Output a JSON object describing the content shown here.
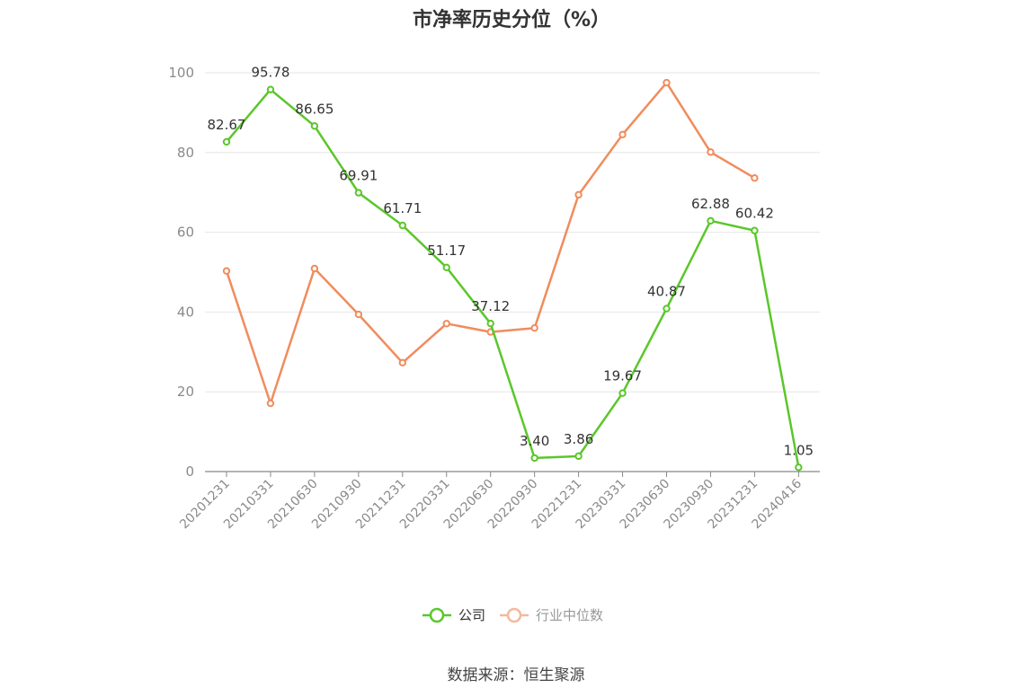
{
  "title": "市净率历史分位（%）",
  "source": "数据来源：恒生聚源",
  "colors": {
    "company": "#5ac72a",
    "industry": "#f08c5c",
    "industry_legend": "#f4b89c",
    "grid": "#e6e6e6",
    "axis": "#888888"
  },
  "chart_data": {
    "type": "line",
    "title": "市净率历史分位（%）",
    "categories": [
      "20201231",
      "20210331",
      "20210630",
      "20210930",
      "20211231",
      "20220331",
      "20220630",
      "20220930",
      "20221231",
      "20230331",
      "20230630",
      "20230930",
      "20231231",
      "20240416"
    ],
    "ylim": [
      0,
      100
    ],
    "yticks": [
      0,
      20,
      40,
      60,
      80,
      100
    ],
    "grid": true,
    "legend_position": "bottom",
    "series": [
      {
        "name": "公司",
        "values": [
          82.67,
          95.78,
          86.65,
          69.91,
          61.71,
          51.17,
          37.12,
          3.4,
          3.86,
          19.67,
          40.87,
          62.88,
          60.42,
          1.05
        ],
        "labels": [
          "82.67",
          "95.78",
          "86.65",
          "69.91",
          "61.71",
          "51.17",
          "37.12",
          "3.40",
          "3.86",
          "19.67",
          "40.87",
          "62.88",
          "60.42",
          "1.05"
        ]
      },
      {
        "name": "行业中位数",
        "values": [
          50.3,
          17.1,
          50.9,
          39.4,
          27.3,
          37.1,
          35.0,
          36.0,
          69.4,
          84.5,
          97.5,
          80.1,
          73.6,
          null
        ]
      }
    ]
  }
}
